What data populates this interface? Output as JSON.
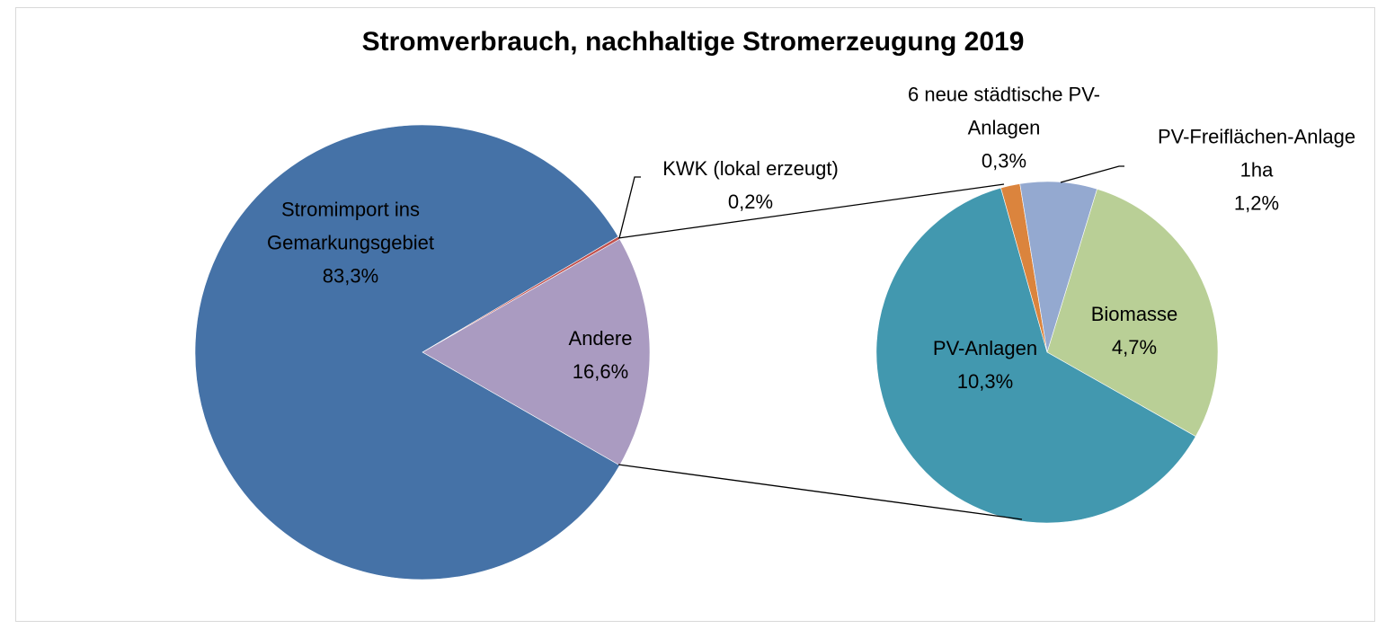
{
  "chart_data": {
    "type": "pie_of_pie",
    "title": "Stromverbrauch, nachhaltige Stromerzeugung 2019",
    "categories": [
      "Stromimport ins Gemarkungsgebiet",
      "KWK (lokal erzeugt)",
      "Andere"
    ],
    "values": [
      83.3,
      0.2,
      16.6
    ],
    "value_labels": [
      "83,3%",
      "0,2%",
      "16,6%"
    ],
    "colors": [
      "#4572a7",
      "#c0504d",
      "#aa9bc1"
    ],
    "secondary": {
      "categories": [
        "PV-Anlagen",
        "Biomasse",
        "PV-Freiflächen-Anlage 1ha",
        "6 neue städtische PV-Anlagen"
      ],
      "values": [
        10.3,
        4.7,
        1.2,
        0.3
      ],
      "value_labels": [
        "10,3%",
        "4,7%",
        "1,2%",
        "0,3%"
      ],
      "colors": [
        "#4298af",
        "#b9cf96",
        "#94a9d0",
        "#db843d"
      ]
    }
  }
}
